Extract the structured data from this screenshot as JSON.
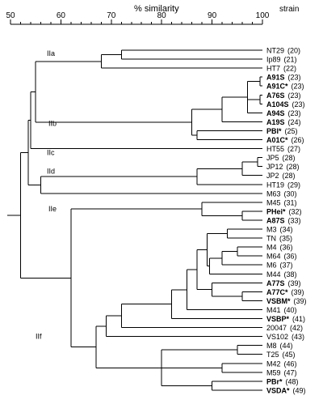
{
  "header": {
    "axis_title": "% similarity",
    "strain_header": "strain"
  },
  "axis": {
    "min": 50,
    "max": 100,
    "ticks": [
      50,
      60,
      70,
      80,
      90,
      100
    ],
    "tick_labels": [
      "50",
      "60",
      "70",
      "80",
      "90",
      "100"
    ]
  },
  "group_labels": [
    {
      "label": "IIa",
      "leaf_index": 1
    },
    {
      "label": "IIb",
      "leaf_index": 8
    },
    {
      "label": "IIc",
      "leaf_index": 12
    },
    {
      "label": "IId",
      "leaf_index": 14
    },
    {
      "label": "IIe",
      "leaf_index": 18
    },
    {
      "label": "IIf",
      "leaf_index": 32
    }
  ],
  "strains": [
    {
      "name": "NT29",
      "num": "(20)",
      "bold": false
    },
    {
      "name": "Ip89",
      "num": "(21)",
      "bold": false
    },
    {
      "name": "HT7",
      "num": "(22)",
      "bold": false
    },
    {
      "name": "A91S",
      "num": "(23)",
      "bold": true
    },
    {
      "name": "A91C*",
      "num": "(23)",
      "bold": true
    },
    {
      "name": "A76S",
      "num": "(23)",
      "bold": true
    },
    {
      "name": "A104S",
      "num": "(23)",
      "bold": true
    },
    {
      "name": "A94S",
      "num": "(23)",
      "bold": true
    },
    {
      "name": "A19S",
      "num": "(24)",
      "bold": true
    },
    {
      "name": "PBI*",
      "num": "(25)",
      "bold": true
    },
    {
      "name": "A01C*",
      "num": "(26)",
      "bold": true
    },
    {
      "name": "HT55",
      "num": "(27)",
      "bold": false
    },
    {
      "name": "JP5",
      "num": "(28)",
      "bold": false
    },
    {
      "name": "JP12",
      "num": "(28)",
      "bold": false
    },
    {
      "name": "JP2",
      "num": "(28)",
      "bold": false
    },
    {
      "name": "HT19",
      "num": "(29)",
      "bold": false
    },
    {
      "name": "M63",
      "num": "(30)",
      "bold": false
    },
    {
      "name": "M45",
      "num": "(31)",
      "bold": false
    },
    {
      "name": "PHei*",
      "num": "(32)",
      "bold": true
    },
    {
      "name": "A87S",
      "num": "(33)",
      "bold": true
    },
    {
      "name": "M3",
      "num": "(34)",
      "bold": false
    },
    {
      "name": "TN",
      "num": "(35)",
      "bold": false
    },
    {
      "name": "M4",
      "num": "(36)",
      "bold": false
    },
    {
      "name": "M64",
      "num": "(36)",
      "bold": false
    },
    {
      "name": "M6",
      "num": "(37)",
      "bold": false
    },
    {
      "name": "M44",
      "num": "(38)",
      "bold": false
    },
    {
      "name": "A77S",
      "num": "(39)",
      "bold": true
    },
    {
      "name": "A77C*",
      "num": "(39)",
      "bold": true
    },
    {
      "name": "VSBM*",
      "num": "(39)",
      "bold": true
    },
    {
      "name": "M41",
      "num": "(40)",
      "bold": false
    },
    {
      "name": "VSBP*",
      "num": "(41)",
      "bold": true
    },
    {
      "name": "20047",
      "num": "(42)",
      "bold": false
    },
    {
      "name": "VS102",
      "num": "(43)",
      "bold": false
    },
    {
      "name": "M8",
      "num": "(44)",
      "bold": false
    },
    {
      "name": "T25",
      "num": "(45)",
      "bold": false
    },
    {
      "name": "M42",
      "num": "(46)",
      "bold": false
    },
    {
      "name": "M59",
      "num": "(47)",
      "bold": false
    },
    {
      "name": "PBr*",
      "num": "(48)",
      "bold": true
    },
    {
      "name": "VSDA*",
      "num": "(49)",
      "bold": true
    }
  ],
  "tree": {
    "sim": 52,
    "ch": [
      {
        "sim": 53.5,
        "ch": [
          {
            "sim": 54,
            "ch": [
              {
                "sim": 55,
                "ch": [
                  {
                    "sim": 68,
                    "ch": [
                      {
                        "sim": 72,
                        "ch": [
                          0,
                          1
                        ]
                      },
                      2
                    ]
                  },
                  {
                    "sim": 86,
                    "ch": [
                      {
                        "sim": 92,
                        "ch": [
                          {
                            "sim": 97,
                            "ch": [
                              {
                                "sim": 99.5,
                                "ch": [
                                  3,
                                  4
                                ]
                              },
                              {
                                "sim": 99.5,
                                "ch": [
                                  5,
                                  6
                                ]
                              },
                              7
                            ]
                          },
                          8
                        ]
                      },
                      {
                        "sim": 87,
                        "ch": [
                          9,
                          10
                        ]
                      }
                    ]
                  }
                ]
              },
              11
            ]
          },
          {
            "sim": 56,
            "ch": [
              {
                "sim": 87,
                "ch": [
                  {
                    "sim": 96,
                    "ch": [
                      {
                        "sim": 99,
                        "ch": [
                          12,
                          13
                        ]
                      },
                      14
                    ]
                  },
                  15
                ]
              },
              16
            ]
          }
        ]
      },
      {
        "sim": 62,
        "ch": [
          {
            "sim": 88,
            "ch": [
              17,
              {
                "sim": 96,
                "ch": [
                  18,
                  19
                ]
              }
            ]
          },
          {
            "sim": 67,
            "ch": [
              {
                "sim": 69,
                "ch": [
                  {
                    "sim": 72,
                    "ch": [
                      {
                        "sim": 82,
                        "ch": [
                          {
                            "sim": 85,
                            "ch": [
                              {
                                "sim": 87,
                                "ch": [
                                  {
                                    "sim": 89,
                                    "ch": [
                                      {
                                        "sim": 93,
                                        "ch": [
                                          20,
                                          21
                                        ]
                                      },
                                      {
                                        "sim": 89.5,
                                        "ch": [
                                          {
                                            "sim": 92,
                                            "ch": [
                                              {
                                                "sim": 95,
                                                "ch": [
                                                  22,
                                                  23
                                                ]
                                              },
                                              24
                                            ]
                                          },
                                          25
                                        ]
                                      }
                                    ]
                                  },
                                  {
                                    "sim": 90,
                                    "ch": [
                                      26,
                                      {
                                        "sim": 96,
                                        "ch": [
                                          27,
                                          28
                                        ]
                                      }
                                    ]
                                  }
                                ]
                              },
                              29
                            ]
                          },
                          30
                        ]
                      },
                      31
                    ]
                  },
                  32
                ]
              },
              {
                "sim": 80,
                "ch": [
                  {
                    "sim": 95,
                    "ch": [
                      33,
                      34
                    ]
                  },
                  {
                    "sim": 92,
                    "ch": [
                      35,
                      36
                    ]
                  },
                  {
                    "sim": 90,
                    "ch": [
                      37,
                      38
                    ]
                  }
                ]
              }
            ]
          }
        ]
      }
    ]
  }
}
